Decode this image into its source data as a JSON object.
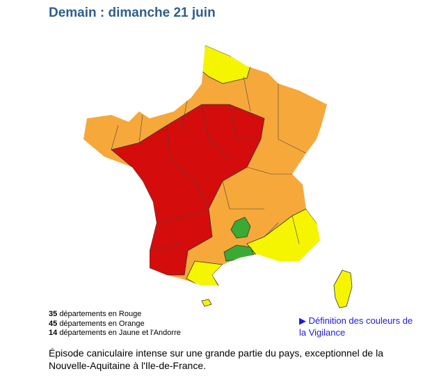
{
  "title": "Demain : dimanche 21 juin",
  "legend": [
    {
      "count": "35",
      "label": "départements en Rouge"
    },
    {
      "count": "45",
      "label": "départements en Orange"
    },
    {
      "count": "14",
      "label": "départements en Jaune et l'Andorre"
    }
  ],
  "link": "▶ Définition des couleurs de la Vigilance",
  "description": "Épisode caniculaire intense sur une grande partie du pays, exceptionnel de la Nouvelle-Aquitaine à l'Ile-de-France."
}
